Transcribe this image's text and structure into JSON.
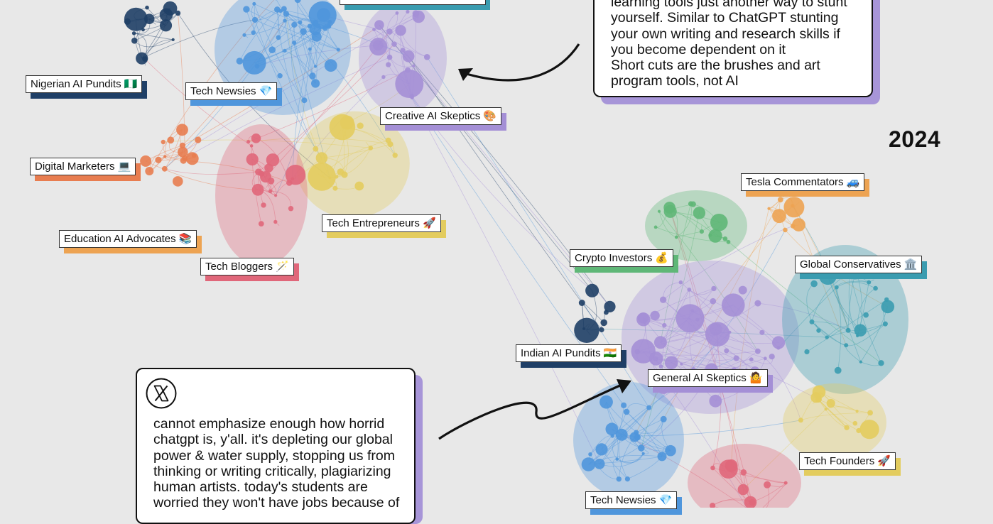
{
  "year": "2024",
  "post_top": {
    "lines": [
      "learning tools just another way to stunt",
      "yourself. Similar to ChatGPT stunting",
      "your own writing and research skills if",
      "you become dependent on it",
      "Short cuts are the brushes and art",
      "program tools, not AI"
    ]
  },
  "post_bottom": {
    "platform_icon": "x-logo-icon",
    "lines": [
      "cannot emphasize enough how horrid",
      "chatgpt is, y'all. it's depleting our global",
      "power & water supply, stopping us from",
      "thinking or writing critically, plagiarizing",
      "human artists. today's students are",
      "worried they won't have jobs because of"
    ]
  },
  "clusters_left": [
    {
      "name": "Nigerian AI Pundits 🇳🇬",
      "color": "#1f3f66"
    },
    {
      "name": "Tech Newsies 💎",
      "color": "#4f96dc"
    },
    {
      "name": "Creative AI Skeptics 🎨",
      "color": "#a48fd6"
    },
    {
      "name": "Digital Marketers 💻",
      "color": "#e87d50"
    },
    {
      "name": "Tech Entrepreneurs 🚀",
      "color": "#e3cc5e"
    },
    {
      "name": "Education AI Advocates 📚",
      "color": "#eda352"
    },
    {
      "name": "Tech Bloggers 🪄",
      "color": "#e0677a"
    }
  ],
  "clusters_right": [
    {
      "name": "Tesla Commentators 🚙",
      "color": "#eda352"
    },
    {
      "name": "Crypto Investors 💰",
      "color": "#5fb777"
    },
    {
      "name": "Global Conservatives 🏛️",
      "color": "#3a9cb0"
    },
    {
      "name": "Indian AI Pundits 🇮🇳",
      "color": "#1f3f66"
    },
    {
      "name": "General AI Skeptics 🤷",
      "color": "#a48fd6"
    },
    {
      "name": "Tech Founders 🚀",
      "color": "#e3cc5e"
    },
    {
      "name": "Tech Newsies 💎",
      "color": "#4f96dc"
    }
  ]
}
